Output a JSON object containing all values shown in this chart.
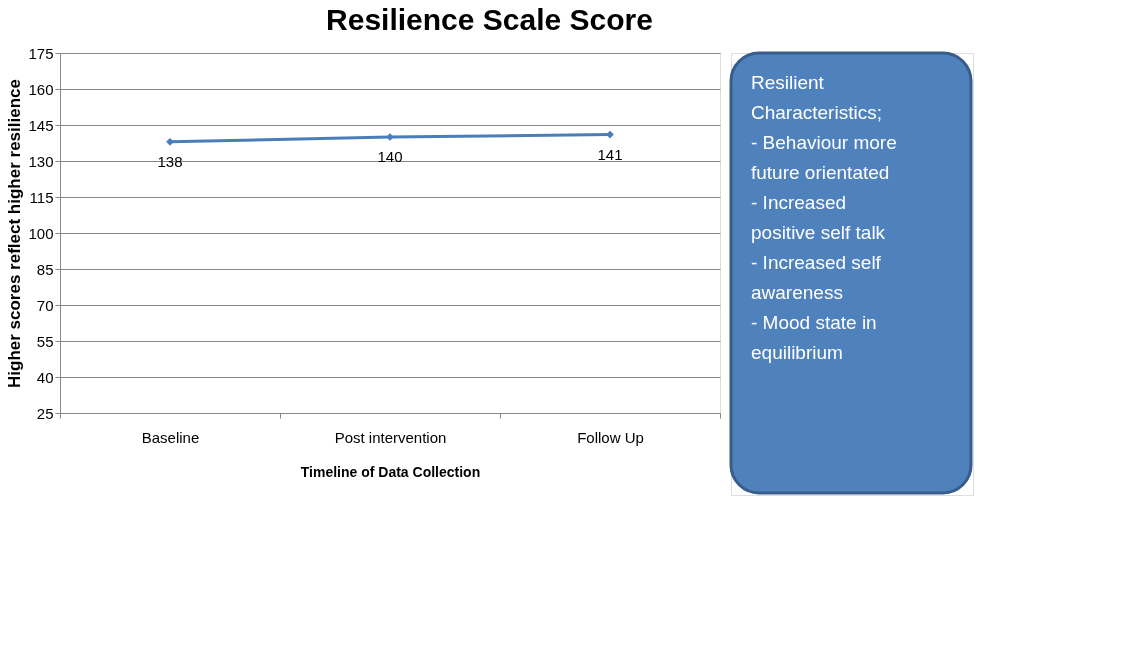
{
  "chart_data": {
    "type": "line",
    "title": "Resilience Scale Score",
    "xlabel": "Timeline of Data Collection",
    "ylabel": "Higher scores reflect higher resilience",
    "categories": [
      "Baseline",
      "Post intervention",
      "Follow Up"
    ],
    "series": [
      {
        "color": "#4a7ebb",
        "values": [
          138,
          140,
          141
        ]
      }
    ],
    "ylim": [
      25,
      175
    ],
    "yticks": [
      25,
      40,
      55,
      70,
      85,
      100,
      115,
      130,
      145,
      160,
      175
    ],
    "grid": "y",
    "marker": "diamond",
    "line_style": "solid",
    "data_labels": true,
    "legend": false,
    "annotations": [
      "Resilient Characteristics;\n- Behaviour more future orientated\n- Increased positive self talk\n- Increased self awareness\n- Mood state in equilibrium"
    ]
  }
}
